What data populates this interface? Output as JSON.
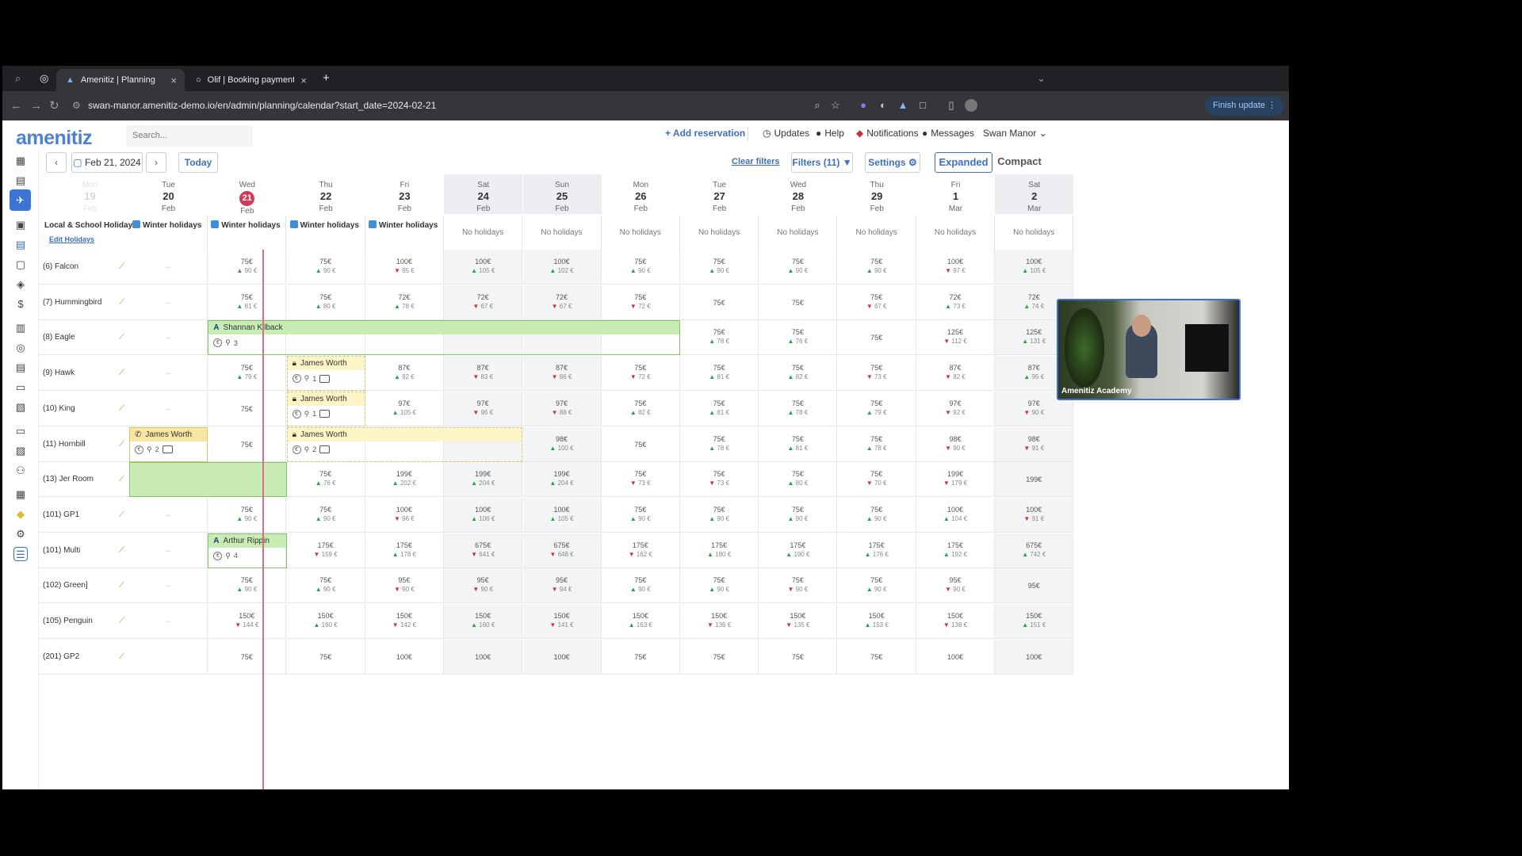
{
  "browser": {
    "tabs": [
      {
        "label": "Amenitiz | Planning",
        "active": true
      },
      {
        "label": "Olif | Booking payment",
        "active": false
      }
    ],
    "url": "swan-manor.amenitiz-demo.io/en/admin/planning/calendar?start_date=2024-02-21",
    "finish_update": "Finish update"
  },
  "app": {
    "logo": "amenitiz",
    "search_placeholder": "Search...",
    "add_reservation": "+ Add reservation",
    "updates": "Updates",
    "help": "Help",
    "notifications": "Notifications",
    "messages": "Messages",
    "property": "Swan Manor ⌄"
  },
  "toolbar": {
    "date": "Feb 21, 2024",
    "today": "Today",
    "clear_filters": "Clear filters",
    "filters": "Filters (11)",
    "settings": "Settings",
    "expanded": "Expanded",
    "compact": "Compact"
  },
  "holidays": {
    "label": "Local & School Holidays",
    "edit": "Edit Holidays"
  },
  "days": [
    {
      "name": "Mon",
      "num": "19",
      "mon": "Feb",
      "hol": "",
      "wknd": false,
      "faded": true
    },
    {
      "name": "Tue",
      "num": "20",
      "mon": "Feb",
      "hol": "Winter holidays",
      "wknd": false
    },
    {
      "name": "Wed",
      "num": "21",
      "mon": "Feb",
      "hol": "Winter holidays",
      "wknd": false,
      "today": true
    },
    {
      "name": "Thu",
      "num": "22",
      "mon": "Feb",
      "hol": "Winter holidays",
      "wknd": false
    },
    {
      "name": "Fri",
      "num": "23",
      "mon": "Feb",
      "hol": "Winter holidays",
      "wknd": false
    },
    {
      "name": "Sat",
      "num": "24",
      "mon": "Feb",
      "hol": "No holidays",
      "wknd": true
    },
    {
      "name": "Sun",
      "num": "25",
      "mon": "Feb",
      "hol": "No holidays",
      "wknd": true
    },
    {
      "name": "Mon",
      "num": "26",
      "mon": "Feb",
      "hol": "No holidays",
      "wknd": false
    },
    {
      "name": "Tue",
      "num": "27",
      "mon": "Feb",
      "hol": "No holidays",
      "wknd": false
    },
    {
      "name": "Wed",
      "num": "28",
      "mon": "Feb",
      "hol": "No holidays",
      "wknd": false
    },
    {
      "name": "Thu",
      "num": "29",
      "mon": "Feb",
      "hol": "No holidays",
      "wknd": false
    },
    {
      "name": "Fri",
      "num": "1",
      "mon": "Mar",
      "hol": "No holidays",
      "wknd": false
    },
    {
      "name": "Sat",
      "num": "2",
      "mon": "Mar",
      "hol": "No holidays",
      "wknd": true
    }
  ],
  "rooms": [
    {
      "name": "(6) Falcon",
      "cells": [
        [
          "--"
        ],
        [
          "75€",
          "90 €",
          "u"
        ],
        [
          "75€",
          "90 €",
          "u"
        ],
        [
          "100€",
          "95 €",
          "d"
        ],
        [
          "100€",
          "105 €",
          "u"
        ],
        [
          "100€",
          "102 €",
          "u"
        ],
        [
          "75€",
          "90 €",
          "u"
        ],
        [
          "75€",
          "90 €",
          "u"
        ],
        [
          "75€",
          "90 €",
          "u"
        ],
        [
          "75€",
          "90 €",
          "u"
        ],
        [
          "100€",
          "97 €",
          "d"
        ],
        [
          "100€",
          "105 €",
          "u"
        ]
      ]
    },
    {
      "name": "(7) Hummingbird",
      "cells": [
        [
          "--"
        ],
        [
          "75€",
          "81 €",
          "u"
        ],
        [
          "75€",
          "80 €",
          "u"
        ],
        [
          "72€",
          "78 €",
          "u"
        ],
        [
          "72€",
          "67 €",
          "d"
        ],
        [
          "72€",
          "67 €",
          "d"
        ],
        [
          "75€",
          "72 €",
          "d"
        ],
        [
          "75€"
        ],
        [
          "75€"
        ],
        [
          "75€",
          "67 €",
          "d"
        ],
        [
          "72€",
          "73 €",
          "u"
        ],
        [
          "72€",
          "74 €",
          "u"
        ]
      ]
    },
    {
      "name": "(8) Eagle",
      "cells": [
        [
          "--"
        ],
        [
          ""
        ],
        [
          ""
        ],
        [
          ""
        ],
        [
          ""
        ],
        [
          ""
        ],
        [
          ""
        ],
        [
          "75€",
          "78 €",
          "u"
        ],
        [
          "75€",
          "76 €",
          "u"
        ],
        [
          "75€"
        ],
        [
          "125€",
          "112 €",
          "d"
        ],
        [
          "125€",
          "131 €",
          "u"
        ]
      ]
    },
    {
      "name": "(9) Hawk",
      "cells": [
        [
          "--"
        ],
        [
          "75€",
          "79 €",
          "u"
        ],
        [
          ""
        ],
        [
          "87€",
          "92 €",
          "u"
        ],
        [
          "87€",
          "83 €",
          "d"
        ],
        [
          "87€",
          "86 €",
          "d"
        ],
        [
          "75€",
          "72 €",
          "d"
        ],
        [
          "75€",
          "81 €",
          "u"
        ],
        [
          "75€",
          "82 €",
          "u"
        ],
        [
          "75€",
          "73 €",
          "d"
        ],
        [
          "87€",
          "82 €",
          "d"
        ],
        [
          "87€",
          "95 €",
          "u"
        ]
      ]
    },
    {
      "name": "(10) King",
      "cells": [
        [
          "--"
        ],
        [
          "75€"
        ],
        [
          ""
        ],
        [
          "97€",
          "105 €",
          "u"
        ],
        [
          "97€",
          "96 €",
          "d"
        ],
        [
          "97€",
          "88 €",
          "d"
        ],
        [
          "75€",
          "82 €",
          "u"
        ],
        [
          "75€",
          "81 €",
          "u"
        ],
        [
          "75€",
          "78 €",
          "u"
        ],
        [
          "75€",
          "79 €",
          "u"
        ],
        [
          "97€",
          "92 €",
          "d"
        ],
        [
          "97€",
          "90 €",
          "d"
        ]
      ]
    },
    {
      "name": "(11) Hornbill",
      "cells": [
        [
          ""
        ],
        [
          "75€"
        ],
        [
          ""
        ],
        [
          ""
        ],
        [
          ""
        ],
        [
          "98€",
          "100 €",
          "u"
        ],
        [
          "75€"
        ],
        [
          "75€",
          "78 €",
          "u"
        ],
        [
          "75€",
          "81 €",
          "u"
        ],
        [
          "75€",
          "78 €",
          "u"
        ],
        [
          "98€",
          "90 €",
          "d"
        ],
        [
          "98€",
          "91 €",
          "d"
        ]
      ]
    },
    {
      "name": "(13) Jer Room",
      "cells": [
        [
          ""
        ],
        [
          ""
        ],
        [
          "75€",
          "76 €",
          "u"
        ],
        [
          "199€",
          "202 €",
          "u"
        ],
        [
          "199€",
          "204 €",
          "u"
        ],
        [
          "199€",
          "204 €",
          "u"
        ],
        [
          "75€",
          "73 €",
          "d"
        ],
        [
          "75€",
          "73 €",
          "d"
        ],
        [
          "75€",
          "80 €",
          "u"
        ],
        [
          "75€",
          "70 €",
          "d"
        ],
        [
          "199€",
          "179 €",
          "d"
        ],
        [
          "199€"
        ]
      ]
    },
    {
      "name": "(101) GP1",
      "cells": [
        [
          "--"
        ],
        [
          "75€",
          "90 €",
          "u"
        ],
        [
          "75€",
          "90 €",
          "u"
        ],
        [
          "100€",
          "96 €",
          "d"
        ],
        [
          "100€",
          "106 €",
          "u"
        ],
        [
          "100€",
          "105 €",
          "u"
        ],
        [
          "75€",
          "90 €",
          "u"
        ],
        [
          "75€",
          "90 €",
          "u"
        ],
        [
          "75€",
          "90 €",
          "u"
        ],
        [
          "75€",
          "90 €",
          "u"
        ],
        [
          "100€",
          "104 €",
          "u"
        ],
        [
          "100€",
          "91 €",
          "d"
        ]
      ]
    },
    {
      "name": "(101) Multi",
      "cells": [
        [
          "--"
        ],
        [
          ""
        ],
        [
          "175€",
          "159 €",
          "d"
        ],
        [
          "175€",
          "178 €",
          "u"
        ],
        [
          "675€",
          "641 €",
          "d"
        ],
        [
          "675€",
          "648 €",
          "d"
        ],
        [
          "175€",
          "162 €",
          "d"
        ],
        [
          "175€",
          "180 €",
          "u"
        ],
        [
          "175€",
          "190 €",
          "u"
        ],
        [
          "175€",
          "176 €",
          "u"
        ],
        [
          "175€",
          "192 €",
          "u"
        ],
        [
          "675€",
          "742 €",
          "u"
        ]
      ]
    },
    {
      "name": "(102) Green]",
      "cells": [
        [
          "--"
        ],
        [
          "75€",
          "90 €",
          "u"
        ],
        [
          "75€",
          "90 €",
          "u"
        ],
        [
          "95€",
          "90 €",
          "d"
        ],
        [
          "95€",
          "90 €",
          "d"
        ],
        [
          "95€",
          "94 €",
          "d"
        ],
        [
          "75€",
          "90 €",
          "u"
        ],
        [
          "75€",
          "90 €",
          "u"
        ],
        [
          "75€",
          "90 €",
          "d"
        ],
        [
          "75€",
          "90 €",
          "u"
        ],
        [
          "95€",
          "90 €",
          "d"
        ],
        [
          "95€"
        ]
      ]
    },
    {
      "name": "(105) Penguin",
      "cells": [
        [
          "--"
        ],
        [
          "150€",
          "144 €",
          "d"
        ],
        [
          "150€",
          "160 €",
          "u"
        ],
        [
          "150€",
          "142 €",
          "d"
        ],
        [
          "150€",
          "160 €",
          "u"
        ],
        [
          "150€",
          "141 €",
          "d"
        ],
        [
          "150€",
          "163 €",
          "u"
        ],
        [
          "150€",
          "136 €",
          "d"
        ],
        [
          "150€",
          "135 €",
          "d"
        ],
        [
          "150€",
          "153 €",
          "u"
        ],
        [
          "150€",
          "138 €",
          "d"
        ],
        [
          "150€",
          "151 €",
          "u"
        ]
      ]
    },
    {
      "name": "(201) GP2",
      "cells": [
        [
          ""
        ],
        [
          "75€"
        ],
        [
          "75€"
        ],
        [
          "100€"
        ],
        [
          "100€"
        ],
        [
          "100€"
        ],
        [
          "75€"
        ],
        [
          "75€"
        ],
        [
          "75€"
        ],
        [
          "75€"
        ],
        [
          "100€"
        ],
        [
          "100€"
        ]
      ]
    }
  ],
  "bookings": [
    {
      "guest": "Shannan Kilback",
      "guests": "3",
      "row": 2,
      "start": 2,
      "span": 6,
      "style": "green",
      "icon": "A",
      "chat": false
    },
    {
      "guest": "James Worth",
      "guests": "1",
      "row": 3,
      "start": 3,
      "span": 1,
      "style": "yellow",
      "icon": "lock",
      "chat": true
    },
    {
      "guest": "James Worth",
      "guests": "1",
      "row": 4,
      "start": 3,
      "span": 1,
      "style": "yellow",
      "icon": "lock",
      "chat": true
    },
    {
      "guest": "James Worth",
      "guests": "2",
      "row": 5,
      "start": 1,
      "span": 1,
      "style": "yellowfill",
      "icon": "phone",
      "chat": true
    },
    {
      "guest": "James Worth",
      "guests": "2",
      "row": 5,
      "start": 3,
      "span": 3,
      "style": "yellow",
      "icon": "lock",
      "chat": true
    },
    {
      "guest": "Arthur Rippin",
      "guests": "4",
      "row": 8,
      "start": 2,
      "span": 1,
      "style": "green",
      "icon": "A",
      "chat": false
    }
  ],
  "video": {
    "caption": "Amenitiz Academy"
  }
}
